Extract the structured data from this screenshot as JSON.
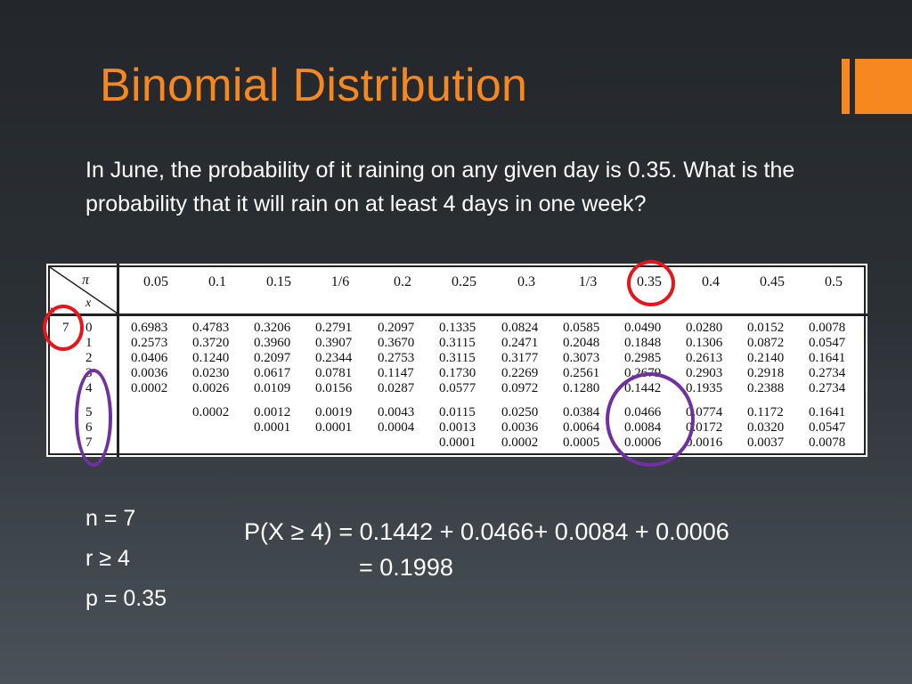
{
  "slide": {
    "title": "Binomial Distribution",
    "question": "In June, the probability of it raining on any given day is 0.35. What is the probability that it will rain on at least 4 days in one week?"
  },
  "table": {
    "pi_label": "π",
    "x_label": "x",
    "n_label": "n",
    "n_value": "7",
    "headers": [
      "0.05",
      "0.1",
      "0.15",
      "1/6",
      "0.2",
      "0.25",
      "0.3",
      "1/3",
      "0.35",
      "0.4",
      "0.45",
      "0.5"
    ],
    "x_values": [
      "0",
      "1",
      "2",
      "3",
      "4",
      "5",
      "6",
      "7"
    ],
    "columns": [
      [
        "0.6983",
        "0.2573",
        "0.0406",
        "0.0036",
        "0.0002",
        "",
        "",
        ""
      ],
      [
        "0.4783",
        "0.3720",
        "0.1240",
        "0.0230",
        "0.0026",
        "0.0002",
        "",
        ""
      ],
      [
        "0.3206",
        "0.3960",
        "0.2097",
        "0.0617",
        "0.0109",
        "0.0012",
        "0.0001",
        ""
      ],
      [
        "0.2791",
        "0.3907",
        "0.2344",
        "0.0781",
        "0.0156",
        "0.0019",
        "0.0001",
        ""
      ],
      [
        "0.2097",
        "0.3670",
        "0.2753",
        "0.1147",
        "0.0287",
        "0.0043",
        "0.0004",
        ""
      ],
      [
        "0.1335",
        "0.3115",
        "0.3115",
        "0.1730",
        "0.0577",
        "0.0115",
        "0.0013",
        "0.0001"
      ],
      [
        "0.0824",
        "0.2471",
        "0.3177",
        "0.2269",
        "0.0972",
        "0.0250",
        "0.0036",
        "0.0002"
      ],
      [
        "0.0585",
        "0.2048",
        "0.3073",
        "0.2561",
        "0.1280",
        "0.0384",
        "0.0064",
        "0.0005"
      ],
      [
        "0.0490",
        "0.1848",
        "0.2985",
        "0.2679",
        "0.1442",
        "0.0466",
        "0.0084",
        "0.0006"
      ],
      [
        "0.0280",
        "0.1306",
        "0.2613",
        "0.2903",
        "0.1935",
        "0.0774",
        "0.0172",
        "0.0016"
      ],
      [
        "0.0152",
        "0.0872",
        "0.2140",
        "0.2918",
        "0.2388",
        "0.1172",
        "0.0320",
        "0.0037"
      ],
      [
        "0.0078",
        "0.0547",
        "0.1641",
        "0.2734",
        "0.2734",
        "0.1641",
        "0.0547",
        "0.0078"
      ]
    ]
  },
  "givens": {
    "n": "n = 7",
    "r": "r ≥ 4",
    "p": "p = 0.35"
  },
  "solution": {
    "line1": "P(X ≥ 4) = 0.1442 + 0.0466+ 0.0084 + 0.0006",
    "line2": "= 0.1998"
  },
  "colors": {
    "title": "#f7871f",
    "accent": "#f7871f",
    "red_circle": "#e8141c",
    "purple_circle": "#7030a0"
  }
}
